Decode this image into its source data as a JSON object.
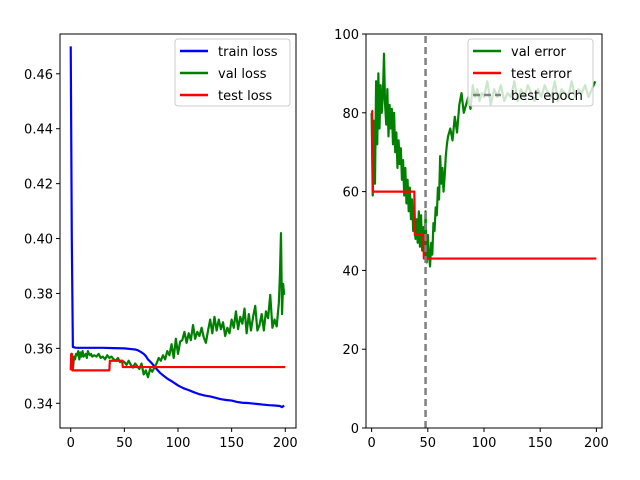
{
  "chart_data": [
    {
      "type": "line",
      "title": "",
      "xlabel": "",
      "ylabel": "",
      "xlim": [
        -10,
        210
      ],
      "ylim": [
        0.331,
        0.4745
      ],
      "xticks": [
        0,
        50,
        100,
        150,
        200
      ],
      "yticks": [
        0.34,
        0.36,
        0.38,
        0.4,
        0.42,
        0.44,
        0.46
      ],
      "ytick_labels": [
        "0.34",
        "0.36",
        "0.38",
        "0.40",
        "0.42",
        "0.44",
        "0.46"
      ],
      "legend_position": "top-right",
      "series": [
        {
          "name": "train loss",
          "color": "#0000ff",
          "x": [
            0,
            1,
            2,
            5,
            10,
            20,
            30,
            40,
            50,
            55,
            60,
            62,
            65,
            68,
            70,
            72,
            75,
            78,
            80,
            83,
            86,
            90,
            95,
            100,
            105,
            110,
            115,
            120,
            125,
            130,
            135,
            140,
            145,
            150,
            155,
            160,
            165,
            170,
            175,
            180,
            185,
            190,
            195,
            197,
            199
          ],
          "y": [
            0.47,
            0.4,
            0.3605,
            0.3602,
            0.3602,
            0.3602,
            0.3602,
            0.3601,
            0.36,
            0.3598,
            0.3596,
            0.3594,
            0.3588,
            0.358,
            0.3572,
            0.356,
            0.3548,
            0.3535,
            0.3525,
            0.3512,
            0.3502,
            0.349,
            0.3478,
            0.3465,
            0.3455,
            0.3448,
            0.344,
            0.3433,
            0.3428,
            0.3425,
            0.342,
            0.3415,
            0.3412,
            0.341,
            0.3405,
            0.3402,
            0.3401,
            0.3399,
            0.3397,
            0.3395,
            0.3393,
            0.3392,
            0.339,
            0.3386,
            0.3392
          ]
        },
        {
          "name": "val loss",
          "color": "#008000",
          "x": [
            0,
            1,
            2,
            3,
            4,
            5,
            6,
            7,
            8,
            9,
            10,
            11,
            12,
            13,
            14,
            15,
            16,
            17,
            18,
            19,
            20,
            22,
            24,
            26,
            28,
            30,
            32,
            34,
            36,
            38,
            40,
            42,
            44,
            46,
            48,
            50,
            52,
            54,
            56,
            58,
            60,
            62,
            64,
            66,
            68,
            70,
            72,
            74,
            76,
            78,
            80,
            82,
            84,
            86,
            88,
            90,
            92,
            94,
            96,
            98,
            100,
            102,
            104,
            106,
            108,
            110,
            112,
            114,
            116,
            118,
            120,
            122,
            124,
            126,
            128,
            130,
            132,
            134,
            136,
            138,
            140,
            142,
            144,
            146,
            148,
            150,
            152,
            154,
            156,
            158,
            160,
            162,
            164,
            166,
            168,
            170,
            172,
            174,
            176,
            178,
            180,
            182,
            184,
            186,
            188,
            190,
            192,
            194,
            195,
            196,
            197,
            198,
            199
          ],
          "y": [
            0.357,
            0.358,
            0.352,
            0.357,
            0.356,
            0.358,
            0.3575,
            0.359,
            0.356,
            0.3585,
            0.357,
            0.359,
            0.357,
            0.3575,
            0.358,
            0.3565,
            0.359,
            0.358,
            0.3575,
            0.358,
            0.357,
            0.3575,
            0.357,
            0.358,
            0.3565,
            0.357,
            0.356,
            0.3575,
            0.3565,
            0.357,
            0.356,
            0.3555,
            0.3565,
            0.355,
            0.3555,
            0.355,
            0.354,
            0.3555,
            0.354,
            0.353,
            0.3545,
            0.3535,
            0.3525,
            0.3545,
            0.3505,
            0.352,
            0.3495,
            0.3525,
            0.3515,
            0.353,
            0.3545,
            0.3565,
            0.3555,
            0.3575,
            0.356,
            0.359,
            0.3575,
            0.3615,
            0.3565,
            0.3635,
            0.358,
            0.3625,
            0.363,
            0.366,
            0.362,
            0.3655,
            0.363,
            0.3685,
            0.3635,
            0.366,
            0.3645,
            0.3675,
            0.364,
            0.362,
            0.3665,
            0.3705,
            0.3655,
            0.3715,
            0.3665,
            0.3705,
            0.367,
            0.3695,
            0.3645,
            0.3675,
            0.3655,
            0.3705,
            0.3675,
            0.3735,
            0.367,
            0.3715,
            0.369,
            0.3745,
            0.3655,
            0.3725,
            0.3665,
            0.3715,
            0.3755,
            0.3665,
            0.3685,
            0.3725,
            0.3665,
            0.3735,
            0.371,
            0.3795,
            0.3675,
            0.3705,
            0.368,
            0.3765,
            0.3865,
            0.402,
            0.3725,
            0.3835,
            0.3795
          ]
        },
        {
          "name": "test loss",
          "color": "#ff0000",
          "x": [
            0,
            0.5,
            1,
            1.5,
            36,
            36.5,
            48,
            48.5,
            70,
            70.5,
            200
          ],
          "y": [
            0.352,
            0.358,
            0.358,
            0.352,
            0.352,
            0.3555,
            0.3555,
            0.3532,
            0.3532,
            0.3532,
            0.3532
          ]
        }
      ]
    },
    {
      "type": "line",
      "title": "",
      "xlabel": "",
      "ylabel": "",
      "xlim": [
        -5,
        205
      ],
      "ylim": [
        0,
        100
      ],
      "xticks": [
        0,
        50,
        100,
        150,
        200
      ],
      "yticks": [
        0,
        20,
        40,
        60,
        80,
        100
      ],
      "ytick_labels": [
        "0",
        "20",
        "40",
        "60",
        "80",
        "100"
      ],
      "legend_position": "top-right",
      "best_epoch": 48,
      "series": [
        {
          "name": "val error",
          "color": "#008000",
          "x": [
            0,
            1,
            2,
            3,
            4,
            5,
            6,
            7,
            8,
            9,
            10,
            11,
            12,
            13,
            14,
            15,
            16,
            17,
            18,
            19,
            20,
            21,
            22,
            23,
            24,
            25,
            26,
            27,
            28,
            29,
            30,
            31,
            32,
            33,
            34,
            35,
            36,
            37,
            38,
            39,
            40,
            41,
            42,
            43,
            44,
            45,
            46,
            47,
            48,
            49,
            50,
            51,
            52,
            53,
            54,
            55,
            56,
            57,
            58,
            59,
            60,
            61,
            62,
            63,
            64,
            65,
            66,
            67,
            68,
            70,
            72,
            74,
            76,
            78,
            80,
            82,
            84,
            86,
            88,
            90,
            92,
            94,
            96,
            98,
            100,
            103,
            106,
            109,
            112,
            115,
            118,
            121,
            124,
            127,
            130,
            133,
            136,
            139,
            142,
            145,
            148,
            151,
            154,
            157,
            160,
            163,
            166,
            169,
            172,
            175,
            178,
            181,
            184,
            187,
            190,
            193,
            196,
            199
          ],
          "y": [
            80,
            59,
            78,
            62,
            88,
            72,
            90,
            76,
            87,
            80,
            84,
            95,
            82,
            77,
            86,
            74,
            82,
            76,
            81,
            72,
            80,
            70,
            75,
            66,
            73,
            67,
            71,
            63,
            68,
            59,
            66,
            57,
            63,
            55,
            61,
            53,
            58,
            50,
            56,
            48,
            53,
            47,
            55,
            46,
            54,
            45,
            51,
            43,
            55,
            42,
            49,
            44,
            41,
            47,
            44,
            52,
            50,
            56,
            54,
            61,
            58,
            69,
            62,
            66,
            60,
            64,
            69,
            72,
            74,
            76,
            73,
            79,
            75,
            82,
            85,
            80,
            82,
            84,
            81,
            87,
            84,
            86,
            83,
            85,
            84,
            88,
            82,
            86,
            84,
            87,
            83,
            85,
            84,
            88,
            83,
            86,
            84,
            87,
            85,
            83,
            86,
            84,
            87,
            85,
            84,
            88,
            83,
            86,
            85,
            84,
            88,
            84,
            86,
            85,
            87,
            84,
            86,
            88
          ]
        },
        {
          "name": "test error",
          "color": "#ff0000",
          "x": [
            0,
            0.5,
            1,
            1.5,
            38,
            38.5,
            46,
            46.5,
            50,
            50.5,
            200
          ],
          "y": [
            80.5,
            80.5,
            60,
            60,
            60,
            49,
            49,
            43,
            43,
            43,
            43
          ]
        },
        {
          "name": "best epoch",
          "color": "#808080",
          "x": [
            48,
            48
          ],
          "y": [
            0,
            100
          ]
        }
      ]
    }
  ]
}
